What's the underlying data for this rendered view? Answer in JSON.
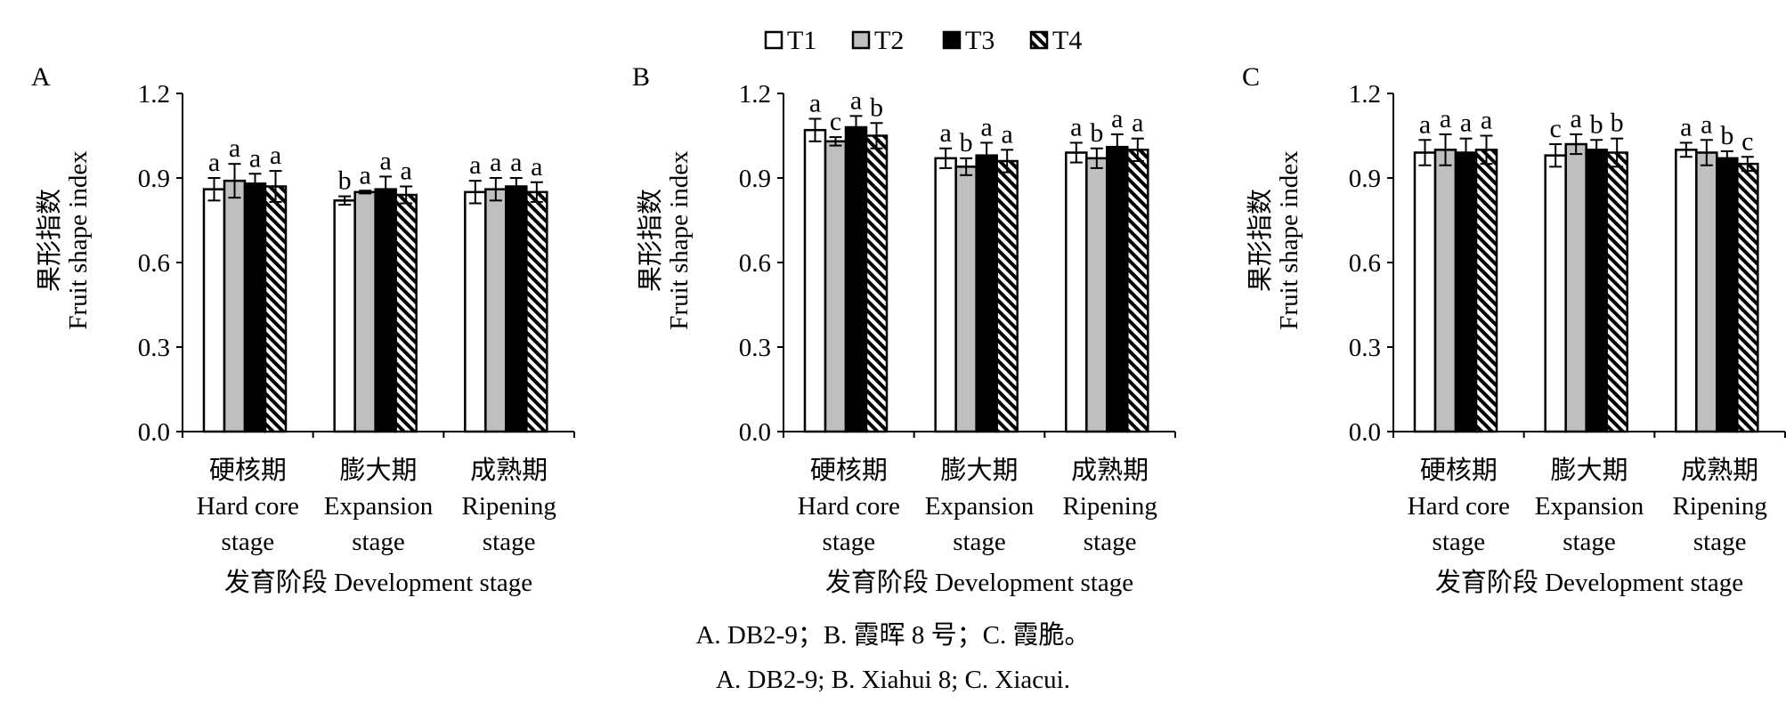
{
  "legend": [
    {
      "label": "T1",
      "fill": "white"
    },
    {
      "label": "T2",
      "fill": "gray"
    },
    {
      "label": "T3",
      "fill": "black"
    },
    {
      "label": "T4",
      "fill": "hatch"
    }
  ],
  "colors": {
    "T1": "#ffffff",
    "T2": "#bfbfbf",
    "T3": "#000000",
    "T4": "hatch"
  },
  "chart_data": [
    {
      "type": "bar",
      "panel_label": "A",
      "ylabel_cn": "果形指数",
      "ylabel_en": "Fruit shape index",
      "ylim": [
        0,
        1.2
      ],
      "yticks": [
        "0.0",
        "0.3",
        "0.6",
        "0.9",
        "1.2"
      ],
      "xlabel": "发育阶段 Development stage",
      "categories": [
        {
          "cn": "硬核期",
          "en1": "Hard core",
          "en2": "stage"
        },
        {
          "cn": "膨大期",
          "en1": "Expansion",
          "en2": "stage"
        },
        {
          "cn": "成熟期",
          "en1": "Ripening",
          "en2": "stage"
        }
      ],
      "series": [
        {
          "name": "T1",
          "values": [
            0.86,
            0.82,
            0.85
          ],
          "errors": [
            0.04,
            0.015,
            0.04
          ],
          "letters": [
            "a",
            "b",
            "a"
          ]
        },
        {
          "name": "T2",
          "values": [
            0.89,
            0.85,
            0.86
          ],
          "errors": [
            0.06,
            0.005,
            0.04
          ],
          "letters": [
            "a",
            "a",
            "a"
          ]
        },
        {
          "name": "T3",
          "values": [
            0.88,
            0.86,
            0.87
          ],
          "errors": [
            0.035,
            0.045,
            0.03
          ],
          "letters": [
            "a",
            "a",
            "a"
          ]
        },
        {
          "name": "T4",
          "values": [
            0.87,
            0.84,
            0.85
          ],
          "errors": [
            0.055,
            0.03,
            0.035
          ],
          "letters": [
            "a",
            "a",
            "a"
          ]
        }
      ]
    },
    {
      "type": "bar",
      "panel_label": "B",
      "ylabel_cn": "果形指数",
      "ylabel_en": "Fruit shape index",
      "ylim": [
        0,
        1.2
      ],
      "yticks": [
        "0.0",
        "0.3",
        "0.6",
        "0.9",
        "1.2"
      ],
      "xlabel": "发育阶段 Development stage",
      "categories": [
        {
          "cn": "硬核期",
          "en1": "Hard core",
          "en2": "stage"
        },
        {
          "cn": "膨大期",
          "en1": "Expansion",
          "en2": "stage"
        },
        {
          "cn": "成熟期",
          "en1": "Ripening",
          "en2": "stage"
        }
      ],
      "series": [
        {
          "name": "T1",
          "values": [
            1.07,
            0.97,
            0.99
          ],
          "errors": [
            0.04,
            0.035,
            0.035
          ],
          "letters": [
            "a",
            "a",
            "a"
          ]
        },
        {
          "name": "T2",
          "values": [
            1.03,
            0.94,
            0.97
          ],
          "errors": [
            0.015,
            0.03,
            0.035
          ],
          "letters": [
            "c",
            "b",
            "b"
          ]
        },
        {
          "name": "T3",
          "values": [
            1.08,
            0.98,
            1.01
          ],
          "errors": [
            0.04,
            0.045,
            0.045
          ],
          "letters": [
            "a",
            "a",
            "a"
          ]
        },
        {
          "name": "T4",
          "values": [
            1.05,
            0.96,
            1.0
          ],
          "errors": [
            0.045,
            0.04,
            0.04
          ],
          "letters": [
            "b",
            "a",
            "a"
          ]
        }
      ]
    },
    {
      "type": "bar",
      "panel_label": "C",
      "ylabel_cn": "果形指数",
      "ylabel_en": "Fruit shape index",
      "ylim": [
        0,
        1.2
      ],
      "yticks": [
        "0.0",
        "0.3",
        "0.6",
        "0.9",
        "1.2"
      ],
      "xlabel": "发育阶段 Development stage",
      "categories": [
        {
          "cn": "硬核期",
          "en1": "Hard core",
          "en2": "stage"
        },
        {
          "cn": "膨大期",
          "en1": "Expansion",
          "en2": "stage"
        },
        {
          "cn": "成熟期",
          "en1": "Ripening",
          "en2": "stage"
        }
      ],
      "series": [
        {
          "name": "T1",
          "values": [
            0.99,
            0.98,
            1.0
          ],
          "errors": [
            0.045,
            0.04,
            0.025
          ],
          "letters": [
            "a",
            "c",
            "a"
          ]
        },
        {
          "name": "T2",
          "values": [
            1.0,
            1.02,
            0.99
          ],
          "errors": [
            0.055,
            0.035,
            0.045
          ],
          "letters": [
            "a",
            "a",
            "a"
          ]
        },
        {
          "name": "T3",
          "values": [
            0.99,
            1.0,
            0.97
          ],
          "errors": [
            0.05,
            0.035,
            0.025
          ],
          "letters": [
            "a",
            "b",
            "b"
          ]
        },
        {
          "name": "T4",
          "values": [
            1.0,
            0.99,
            0.95
          ],
          "errors": [
            0.05,
            0.05,
            0.025
          ],
          "letters": [
            "a",
            "b",
            "c"
          ]
        }
      ]
    }
  ],
  "caption": {
    "cn": "A. DB2-9；B. 霞晖 8 号；C. 霞脆。",
    "en": "A. DB2-9; B. Xiahui 8; C. Xiacui."
  }
}
